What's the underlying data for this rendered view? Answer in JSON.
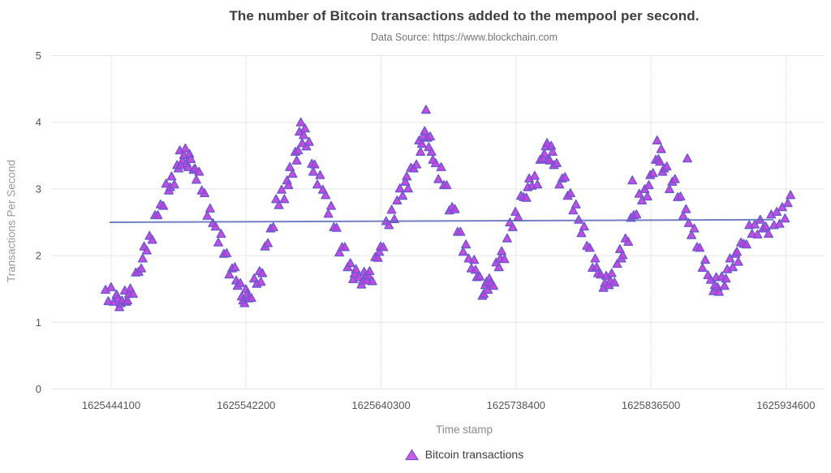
{
  "header": {
    "title": "The number of Bitcoin transactions added to the mempool per second.",
    "subtitle": "Data Source: https://www.blockchain.com"
  },
  "chart_data": {
    "type": "scatter",
    "title": "The number of Bitcoin transactions added to the mempool per second.",
    "subtitle": "Data Source: https://www.blockchain.com",
    "xlabel": "Time stamp",
    "ylabel": "Transactions Per Second",
    "xlim": [
      1625400440,
      1625962710
    ],
    "ylim": [
      0,
      5
    ],
    "x_ticks": [
      1625444100,
      1625542200,
      1625640300,
      1625738400,
      1625836500,
      1625934600
    ],
    "y_ticks": [
      0,
      1,
      2,
      3,
      4,
      5
    ],
    "grid": {
      "horizontal": "solid",
      "vertical": "dotted"
    },
    "legend": {
      "position": "bottom-center",
      "entries": [
        {
          "label": "Bitcoin transactions",
          "marker": "triangle"
        }
      ]
    },
    "series": [
      {
        "name": "Bitcoin transactions",
        "type": "scatter",
        "marker": "triangle",
        "marker_fill": "#c43ce1",
        "marker_stroke": "#6a5acd",
        "t_base": 1625440000,
        "points_offset_ks": [
          [
            0,
            1.48
          ],
          [
            2,
            1.31
          ],
          [
            4,
            1.52
          ],
          [
            6,
            1.3
          ],
          [
            8,
            1.41
          ],
          [
            9,
            1.35
          ],
          [
            10,
            1.22
          ],
          [
            11,
            1.28
          ],
          [
            12,
            1.32
          ],
          [
            14,
            1.47
          ],
          [
            15,
            1.3
          ],
          [
            16,
            1.32
          ],
          [
            17,
            1.42
          ],
          [
            18,
            1.5
          ],
          [
            20,
            1.42
          ],
          [
            22,
            1.74
          ],
          [
            24,
            1.75
          ],
          [
            26,
            1.8
          ],
          [
            27,
            1.95
          ],
          [
            28,
            2.13
          ],
          [
            30,
            2.07
          ],
          [
            32,
            2.29
          ],
          [
            34,
            2.23
          ],
          [
            36,
            2.6
          ],
          [
            38,
            2.6
          ],
          [
            40,
            2.76
          ],
          [
            42,
            2.74
          ],
          [
            44,
            3.07
          ],
          [
            46,
            2.97
          ],
          [
            47,
            3.02
          ],
          [
            48,
            3.18
          ],
          [
            50,
            3.06
          ],
          [
            52,
            3.35
          ],
          [
            53,
            3.3
          ],
          [
            54,
            3.57
          ],
          [
            55,
            3.35
          ],
          [
            56,
            3.42
          ],
          [
            57,
            3.5
          ],
          [
            58,
            3.6
          ],
          [
            59,
            3.38
          ],
          [
            60,
            3.32
          ],
          [
            61,
            3.52
          ],
          [
            62,
            3.44
          ],
          [
            64,
            3.28
          ],
          [
            65,
            3.3
          ],
          [
            66,
            3.13
          ],
          [
            68,
            3.25
          ],
          [
            70,
            2.97
          ],
          [
            72,
            2.93
          ],
          [
            74,
            2.59
          ],
          [
            76,
            2.7
          ],
          [
            78,
            2.48
          ],
          [
            80,
            2.43
          ],
          [
            82,
            2.19
          ],
          [
            84,
            2.32
          ],
          [
            86,
            2.02
          ],
          [
            88,
            2.03
          ],
          [
            90,
            1.71
          ],
          [
            92,
            1.8
          ],
          [
            94,
            1.82
          ],
          [
            95,
            1.62
          ],
          [
            96,
            1.54
          ],
          [
            98,
            1.58
          ],
          [
            99,
            1.38
          ],
          [
            100,
            1.32
          ],
          [
            101,
            1.28
          ],
          [
            102,
            1.49
          ],
          [
            103,
            1.42
          ],
          [
            104,
            1.35
          ],
          [
            106,
            1.36
          ],
          [
            108,
            1.65
          ],
          [
            110,
            1.57
          ],
          [
            112,
            1.76
          ],
          [
            113,
            1.6
          ],
          [
            114,
            1.73
          ],
          [
            116,
            2.13
          ],
          [
            118,
            2.18
          ],
          [
            120,
            2.4
          ],
          [
            122,
            2.42
          ],
          [
            124,
            2.84
          ],
          [
            126,
            2.75
          ],
          [
            128,
            2.98
          ],
          [
            130,
            2.84
          ],
          [
            132,
            3.12
          ],
          [
            133,
            3.05
          ],
          [
            134,
            3.32
          ],
          [
            136,
            3.22
          ],
          [
            138,
            3.55
          ],
          [
            139,
            3.42
          ],
          [
            140,
            3.57
          ],
          [
            141,
            3.85
          ],
          [
            142,
            3.99
          ],
          [
            143,
            3.68
          ],
          [
            144,
            3.8
          ],
          [
            145,
            3.9
          ],
          [
            146,
            3.63
          ],
          [
            148,
            3.7
          ],
          [
            150,
            3.37
          ],
          [
            151,
            3.25
          ],
          [
            152,
            3.36
          ],
          [
            154,
            3.06
          ],
          [
            156,
            3.2
          ],
          [
            158,
            2.98
          ],
          [
            160,
            2.9
          ],
          [
            162,
            2.62
          ],
          [
            164,
            2.74
          ],
          [
            166,
            2.42
          ],
          [
            168,
            2.41
          ],
          [
            170,
            2.04
          ],
          [
            172,
            2.12
          ],
          [
            174,
            2.12
          ],
          [
            176,
            1.82
          ],
          [
            178,
            1.88
          ],
          [
            180,
            1.64
          ],
          [
            181,
            1.72
          ],
          [
            182,
            1.79
          ],
          [
            184,
            1.67
          ],
          [
            186,
            1.56
          ],
          [
            187,
            1.62
          ],
          [
            188,
            1.75
          ],
          [
            189,
            1.68
          ],
          [
            190,
            1.62
          ],
          [
            191,
            1.7
          ],
          [
            192,
            1.76
          ],
          [
            194,
            1.61
          ],
          [
            196,
            1.97
          ],
          [
            198,
            1.96
          ],
          [
            199,
            2.05
          ],
          [
            200,
            2.13
          ],
          [
            202,
            2.12
          ],
          [
            204,
            2.51
          ],
          [
            206,
            2.45
          ],
          [
            208,
            2.68
          ],
          [
            210,
            2.54
          ],
          [
            212,
            2.82
          ],
          [
            214,
            3.0
          ],
          [
            216,
            2.89
          ],
          [
            218,
            3.1
          ],
          [
            219,
            3.18
          ],
          [
            220,
            3.0
          ],
          [
            222,
            3.31
          ],
          [
            224,
            3.3
          ],
          [
            226,
            3.36
          ],
          [
            228,
            3.72
          ],
          [
            229,
            3.55
          ],
          [
            230,
            3.67
          ],
          [
            231,
            3.78
          ],
          [
            232,
            3.86
          ],
          [
            233,
            4.18
          ],
          [
            234,
            3.76
          ],
          [
            235,
            3.62
          ],
          [
            236,
            3.78
          ],
          [
            237,
            3.55
          ],
          [
            238,
            3.43
          ],
          [
            240,
            3.38
          ],
          [
            242,
            3.14
          ],
          [
            244,
            3.32
          ],
          [
            246,
            3.05
          ],
          [
            248,
            3.05
          ],
          [
            250,
            2.67
          ],
          [
            252,
            2.72
          ],
          [
            254,
            2.69
          ],
          [
            256,
            2.35
          ],
          [
            258,
            2.35
          ],
          [
            260,
            2.05
          ],
          [
            262,
            2.16
          ],
          [
            264,
            1.95
          ],
          [
            266,
            1.8
          ],
          [
            268,
            1.93
          ],
          [
            269,
            1.78
          ],
          [
            270,
            1.67
          ],
          [
            272,
            1.68
          ],
          [
            274,
            1.39
          ],
          [
            275,
            1.42
          ],
          [
            276,
            1.55
          ],
          [
            277,
            1.6
          ],
          [
            278,
            1.48
          ],
          [
            279,
            1.65
          ],
          [
            280,
            1.58
          ],
          [
            282,
            1.54
          ],
          [
            284,
            1.89
          ],
          [
            286,
            1.82
          ],
          [
            287,
            1.95
          ],
          [
            288,
            2.06
          ],
          [
            290,
            1.94
          ],
          [
            292,
            2.25
          ],
          [
            294,
            2.49
          ],
          [
            296,
            2.42
          ],
          [
            298,
            2.65
          ],
          [
            300,
            2.57
          ],
          [
            302,
            2.89
          ],
          [
            304,
            2.87
          ],
          [
            306,
            2.86
          ],
          [
            307,
            3.02
          ],
          [
            308,
            3.15
          ],
          [
            310,
            3.04
          ],
          [
            312,
            3.19
          ],
          [
            314,
            3.06
          ],
          [
            316,
            3.43
          ],
          [
            318,
            3.45
          ],
          [
            319,
            3.52
          ],
          [
            320,
            3.63
          ],
          [
            321,
            3.68
          ],
          [
            322,
            3.44
          ],
          [
            323,
            3.42
          ],
          [
            324,
            3.64
          ],
          [
            325,
            3.55
          ],
          [
            326,
            3.35
          ],
          [
            328,
            3.38
          ],
          [
            330,
            3.06
          ],
          [
            332,
            3.15
          ],
          [
            334,
            3.17
          ],
          [
            336,
            2.89
          ],
          [
            338,
            2.93
          ],
          [
            340,
            2.67
          ],
          [
            342,
            2.76
          ],
          [
            344,
            2.53
          ],
          [
            346,
            2.33
          ],
          [
            348,
            2.43
          ],
          [
            350,
            2.14
          ],
          [
            352,
            2.11
          ],
          [
            354,
            1.81
          ],
          [
            356,
            1.95
          ],
          [
            357,
            1.82
          ],
          [
            358,
            1.73
          ],
          [
            360,
            1.71
          ],
          [
            362,
            1.51
          ],
          [
            363,
            1.58
          ],
          [
            364,
            1.69
          ],
          [
            366,
            1.55
          ],
          [
            367,
            1.62
          ],
          [
            368,
            1.73
          ],
          [
            370,
            1.59
          ],
          [
            372,
            1.87
          ],
          [
            374,
            2.09
          ],
          [
            375,
            1.95
          ],
          [
            376,
            2.0
          ],
          [
            378,
            2.25
          ],
          [
            380,
            2.2
          ],
          [
            382,
            2.56
          ],
          [
            383,
            3.12
          ],
          [
            384,
            2.6
          ],
          [
            386,
            2.61
          ],
          [
            388,
            2.92
          ],
          [
            390,
            2.82
          ],
          [
            392,
            2.99
          ],
          [
            394,
            2.88
          ],
          [
            395,
            3.05
          ],
          [
            396,
            3.2
          ],
          [
            398,
            3.23
          ],
          [
            400,
            3.43
          ],
          [
            401,
            3.72
          ],
          [
            402,
            3.44
          ],
          [
            403,
            3.4
          ],
          [
            404,
            3.59
          ],
          [
            405,
            3.25
          ],
          [
            406,
            3.3
          ],
          [
            408,
            3.33
          ],
          [
            410,
            2.99
          ],
          [
            412,
            3.1
          ],
          [
            414,
            3.14
          ],
          [
            416,
            2.87
          ],
          [
            418,
            2.88
          ],
          [
            420,
            2.59
          ],
          [
            422,
            2.69
          ],
          [
            423,
            3.45
          ],
          [
            424,
            2.48
          ],
          [
            426,
            2.3
          ],
          [
            428,
            2.4
          ],
          [
            430,
            2.12
          ],
          [
            432,
            2.11
          ],
          [
            434,
            1.81
          ],
          [
            436,
            1.93
          ],
          [
            438,
            1.7
          ],
          [
            440,
            1.63
          ],
          [
            442,
            1.46
          ],
          [
            443,
            1.55
          ],
          [
            444,
            1.67
          ],
          [
            445,
            1.52
          ],
          [
            446,
            1.45
          ],
          [
            448,
            1.68
          ],
          [
            450,
            1.54
          ],
          [
            451,
            1.65
          ],
          [
            452,
            1.79
          ],
          [
            454,
            1.95
          ],
          [
            456,
            1.82
          ],
          [
            458,
            2.02
          ],
          [
            459,
            2.05
          ],
          [
            460,
            1.9
          ],
          [
            462,
            2.19
          ],
          [
            464,
            2.17
          ],
          [
            466,
            2.16
          ],
          [
            468,
            2.45
          ],
          [
            470,
            2.32
          ],
          [
            472,
            2.46
          ],
          [
            474,
            2.31
          ],
          [
            476,
            2.53
          ],
          [
            478,
            2.4
          ],
          [
            480,
            2.43
          ],
          [
            482,
            2.32
          ],
          [
            484,
            2.61
          ],
          [
            486,
            2.45
          ],
          [
            488,
            2.65
          ],
          [
            490,
            2.47
          ],
          [
            492,
            2.72
          ],
          [
            494,
            2.55
          ],
          [
            496,
            2.78
          ],
          [
            498,
            2.9
          ]
        ]
      },
      {
        "name": "mean trend line",
        "type": "line",
        "color": "#5b68b8",
        "points_ts": [
          [
            1625443000,
            2.5
          ],
          [
            1625925600,
            2.54
          ]
        ]
      }
    ]
  }
}
